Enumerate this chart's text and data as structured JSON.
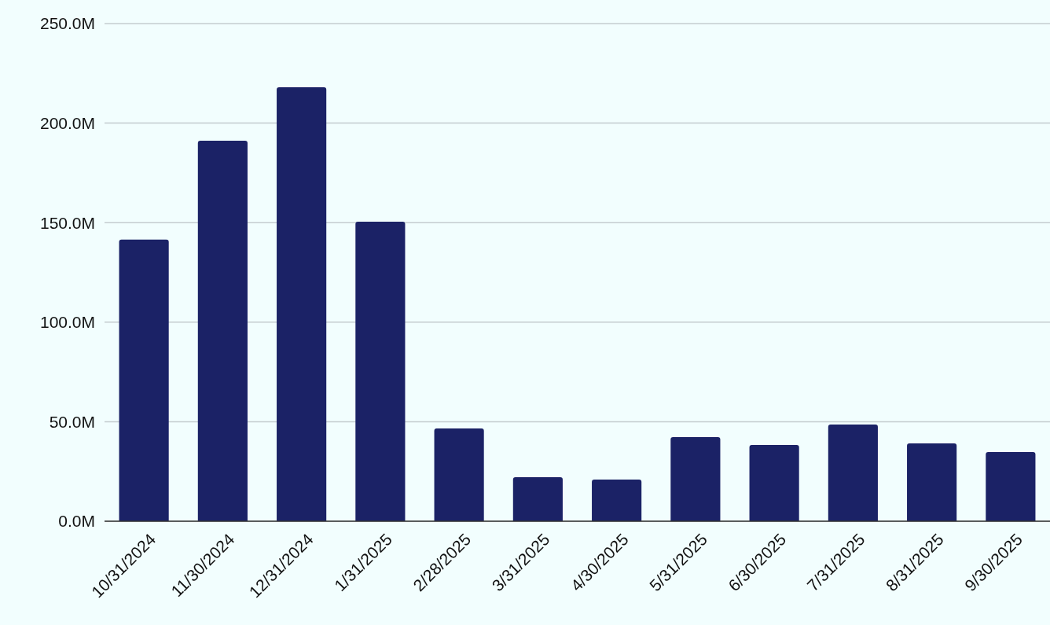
{
  "chart_data": {
    "type": "bar",
    "categories": [
      "10/31/2024",
      "11/30/2024",
      "12/31/2024",
      "1/31/2025",
      "2/28/2025",
      "3/31/2025",
      "4/30/2025",
      "5/31/2025",
      "6/30/2025",
      "7/31/2025",
      "8/31/2025",
      "9/30/2025"
    ],
    "values": [
      141.5,
      191.2,
      218,
      150.5,
      46.6,
      22.1,
      20.9,
      42.3,
      38.3,
      48.6,
      39.1,
      34.8
    ],
    "color": "#1b2266",
    "ylim": [
      0,
      250
    ],
    "yticks": [
      {
        "value": 0,
        "label": "0.0M"
      },
      {
        "value": 50,
        "label": "50.0M"
      },
      {
        "value": 100,
        "label": "100.0M"
      },
      {
        "value": 150,
        "label": "150.0M"
      },
      {
        "value": 200,
        "label": "200.0M"
      },
      {
        "value": 250,
        "label": "250.0M"
      }
    ],
    "grid": "y"
  }
}
